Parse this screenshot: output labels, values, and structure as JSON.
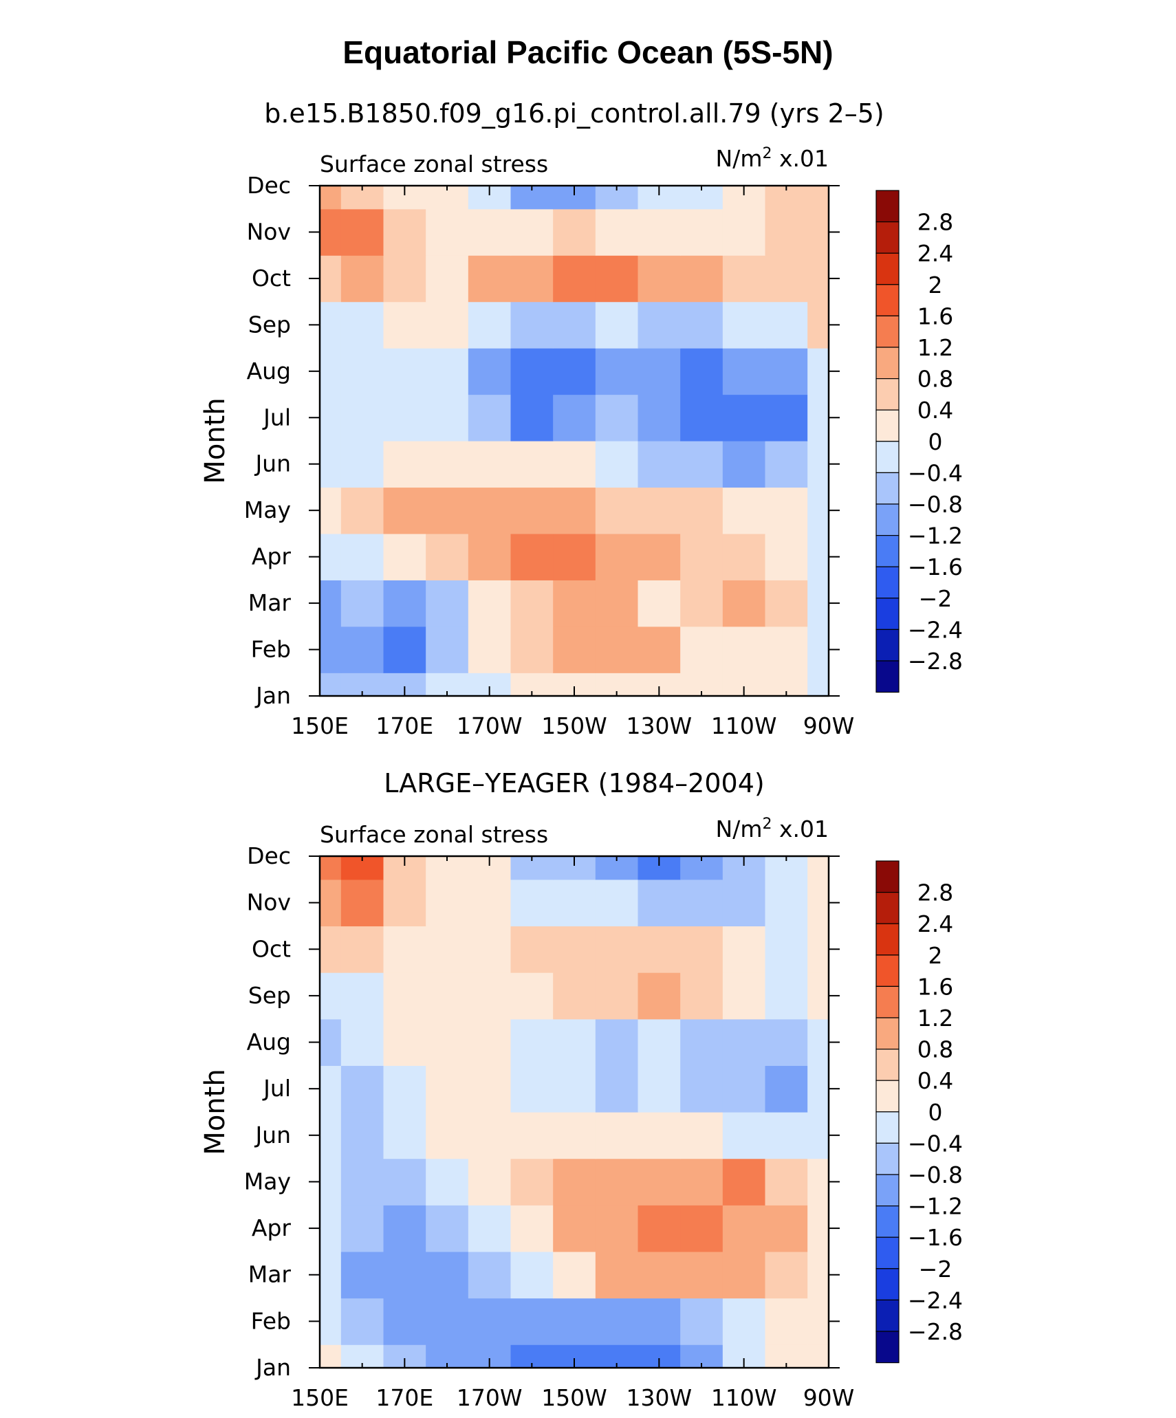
{
  "figure": {
    "title": "Equatorial Pacific Ocean (5S-5N)"
  },
  "chart_data": [
    {
      "type": "heatmap",
      "panel_title": "b.e15.B1850.f09_g16.pi_control.all.79 (yrs 2–5)",
      "left_label": "Surface zonal stress",
      "right_label_prefix": "N/m",
      "right_label_sup": "2",
      "right_label_suffix": " x.01",
      "ylabel": "Month",
      "x_tick_labels": [
        "150E",
        "170E",
        "170W",
        "150W",
        "130W",
        "110W",
        "90W"
      ],
      "y_tick_labels": [
        "Jan",
        "Feb",
        "Mar",
        "Apr",
        "May",
        "Jun",
        "Jul",
        "Aug",
        "Sep",
        "Oct",
        "Nov",
        "Dec"
      ],
      "xlim_deg_east": [
        150,
        270
      ],
      "levels": [
        -2.8,
        -2.4,
        -2,
        -1.6,
        -1.2,
        -0.8,
        -0.4,
        0,
        0.4,
        0.8,
        1.2,
        1.6,
        2,
        2.4,
        2.8
      ],
      "level_labels": [
        "2.8",
        "2.4",
        "2",
        "1.6",
        "1.2",
        "0.8",
        "0.4",
        "0",
        "−0.4",
        "−0.8",
        "−1.2",
        "−1.6",
        "−2",
        "−2.4",
        "−2.8"
      ],
      "colormap": [
        "#08088c",
        "#0b1fb4",
        "#1a3ee0",
        "#2f5cf0",
        "#4a7cf5",
        "#7aa2f8",
        "#a9c5fb",
        "#d6e8fd",
        "#fde9d9",
        "#fccdb0",
        "#f9a97f",
        "#f57d50",
        "#f0552a",
        "#d93411",
        "#b51e0b",
        "#8a0a06"
      ],
      "x": [
        150,
        160,
        170,
        180,
        190,
        200,
        210,
        220,
        230,
        240,
        250,
        260,
        270
      ],
      "months": [
        "Jan",
        "Feb",
        "Mar",
        "Apr",
        "May",
        "Jun",
        "Jul",
        "Aug",
        "Sep",
        "Oct",
        "Nov",
        "Dec"
      ],
      "values": [
        [
          -0.5,
          -0.6,
          -0.8,
          -0.4,
          -0.2,
          0.1,
          0.2,
          0.2,
          0.3,
          0.2,
          0.1,
          0.0,
          -0.2
        ],
        [
          -1.2,
          -1.0,
          -1.5,
          -0.8,
          0.2,
          0.5,
          0.9,
          1.0,
          0.9,
          0.3,
          0.1,
          0.3,
          -0.2
        ],
        [
          -0.9,
          -0.8,
          -0.9,
          -0.6,
          0.3,
          0.6,
          0.9,
          0.9,
          0.3,
          0.6,
          0.8,
          0.4,
          -0.3
        ],
        [
          -0.2,
          -0.1,
          0.1,
          0.5,
          0.9,
          1.3,
          1.4,
          1.0,
          0.8,
          0.7,
          0.5,
          0.2,
          -0.4
        ],
        [
          0.0,
          0.4,
          0.9,
          1.0,
          1.0,
          0.9,
          0.8,
          0.6,
          0.5,
          0.4,
          0.2,
          0.0,
          -0.3
        ],
        [
          -0.2,
          -0.2,
          0.1,
          0.2,
          0.2,
          0.2,
          0.0,
          -0.3,
          -0.5,
          -0.7,
          -0.9,
          -0.8,
          -0.4
        ],
        [
          -0.3,
          -0.2,
          -0.1,
          -0.2,
          -0.6,
          -1.4,
          -1.1,
          -0.6,
          -1.0,
          -1.5,
          -1.6,
          -1.3,
          -0.4
        ],
        [
          -0.3,
          -0.2,
          -0.1,
          -0.3,
          -0.9,
          -1.5,
          -1.3,
          -0.9,
          -1.2,
          -1.4,
          -1.2,
          -0.9,
          -0.2
        ],
        [
          -0.2,
          -0.1,
          0.0,
          0.1,
          -0.2,
          -0.5,
          -0.6,
          -0.4,
          -0.5,
          -0.6,
          -0.4,
          -0.2,
          0.4
        ],
        [
          0.7,
          0.9,
          0.5,
          0.3,
          0.8,
          1.0,
          1.4,
          1.2,
          0.9,
          0.8,
          0.6,
          0.5,
          0.5
        ],
        [
          1.2,
          1.4,
          0.6,
          0.3,
          0.2,
          0.3,
          0.4,
          0.3,
          0.1,
          0.1,
          0.2,
          0.5,
          0.6
        ],
        [
          0.8,
          0.5,
          0.3,
          0.1,
          -0.4,
          -1.0,
          -0.9,
          -0.6,
          -0.3,
          -0.1,
          0.0,
          0.5,
          0.5
        ]
      ]
    },
    {
      "type": "heatmap",
      "panel_title": "LARGE–YEAGER (1984–2004)",
      "left_label": "Surface zonal stress",
      "right_label_prefix": "N/m",
      "right_label_sup": "2",
      "right_label_suffix": " x.01",
      "ylabel": "Month",
      "x_tick_labels": [
        "150E",
        "170E",
        "170W",
        "150W",
        "130W",
        "110W",
        "90W"
      ],
      "y_tick_labels": [
        "Jan",
        "Feb",
        "Mar",
        "Apr",
        "May",
        "Jun",
        "Jul",
        "Aug",
        "Sep",
        "Oct",
        "Nov",
        "Dec"
      ],
      "xlim_deg_east": [
        150,
        270
      ],
      "levels": [
        -2.8,
        -2.4,
        -2,
        -1.6,
        -1.2,
        -0.8,
        -0.4,
        0,
        0.4,
        0.8,
        1.2,
        1.6,
        2,
        2.4,
        2.8
      ],
      "level_labels": [
        "2.8",
        "2.4",
        "2",
        "1.6",
        "1.2",
        "0.8",
        "0.4",
        "0",
        "−0.4",
        "−0.8",
        "−1.2",
        "−1.6",
        "−2",
        "−2.4",
        "−2.8"
      ],
      "colormap": [
        "#08088c",
        "#0b1fb4",
        "#1a3ee0",
        "#2f5cf0",
        "#4a7cf5",
        "#7aa2f8",
        "#a9c5fb",
        "#d6e8fd",
        "#fde9d9",
        "#fccdb0",
        "#f9a97f",
        "#f57d50",
        "#f0552a",
        "#d93411",
        "#b51e0b",
        "#8a0a06"
      ],
      "x": [
        150,
        160,
        170,
        180,
        190,
        200,
        210,
        220,
        230,
        240,
        250,
        260,
        270
      ],
      "months": [
        "Jan",
        "Feb",
        "Mar",
        "Apr",
        "May",
        "Jun",
        "Jul",
        "Aug",
        "Sep",
        "Oct",
        "Nov",
        "Dec"
      ],
      "values": [
        [
          0.1,
          -0.3,
          -0.6,
          -0.9,
          -1.0,
          -1.6,
          -1.4,
          -1.5,
          -1.3,
          -1.0,
          -0.4,
          0.1,
          0.2
        ],
        [
          -0.2,
          -0.6,
          -0.9,
          -1.1,
          -1.0,
          -1.1,
          -1.0,
          -1.1,
          -0.9,
          -0.6,
          -0.2,
          0.2,
          0.2
        ],
        [
          -0.4,
          -1.1,
          -1.2,
          -1.0,
          -0.6,
          -0.3,
          0.3,
          0.8,
          0.9,
          0.9,
          0.9,
          0.5,
          0.2
        ],
        [
          -0.3,
          -0.6,
          -0.9,
          -0.5,
          -0.2,
          0.2,
          0.9,
          1.0,
          1.3,
          1.4,
          1.1,
          0.8,
          0.3
        ],
        [
          -0.2,
          -0.5,
          -0.6,
          -0.1,
          0.2,
          0.6,
          0.8,
          0.8,
          0.9,
          1.1,
          1.2,
          0.6,
          0.2
        ],
        [
          -0.3,
          -0.5,
          -0.3,
          0.1,
          0.1,
          0.2,
          0.3,
          0.2,
          0.1,
          0.0,
          -0.2,
          -0.4,
          -0.1
        ],
        [
          -0.4,
          -0.6,
          -0.2,
          0.2,
          0.2,
          -0.2,
          -0.4,
          -0.6,
          -0.3,
          -0.5,
          -0.7,
          -0.9,
          -0.3
        ],
        [
          -0.6,
          -0.4,
          0.1,
          0.3,
          0.1,
          -0.3,
          -0.4,
          -0.6,
          -0.4,
          -0.5,
          -0.7,
          -0.5,
          -0.1
        ],
        [
          -0.3,
          -0.1,
          0.1,
          0.2,
          0.3,
          0.3,
          0.4,
          0.6,
          0.8,
          0.6,
          0.2,
          -0.2,
          0.1
        ],
        [
          0.5,
          0.6,
          0.2,
          0.2,
          0.3,
          0.5,
          0.6,
          0.6,
          0.5,
          0.4,
          0.2,
          -0.2,
          0.3
        ],
        [
          1.1,
          1.2,
          0.6,
          0.1,
          0.0,
          -0.2,
          -0.3,
          -0.4,
          -0.5,
          -0.6,
          -0.5,
          -0.3,
          0.1
        ],
        [
          1.5,
          1.9,
          0.7,
          0.2,
          0.0,
          -0.5,
          -0.8,
          -1.2,
          -1.6,
          -1.0,
          -0.6,
          -0.2,
          0.1
        ]
      ]
    }
  ]
}
